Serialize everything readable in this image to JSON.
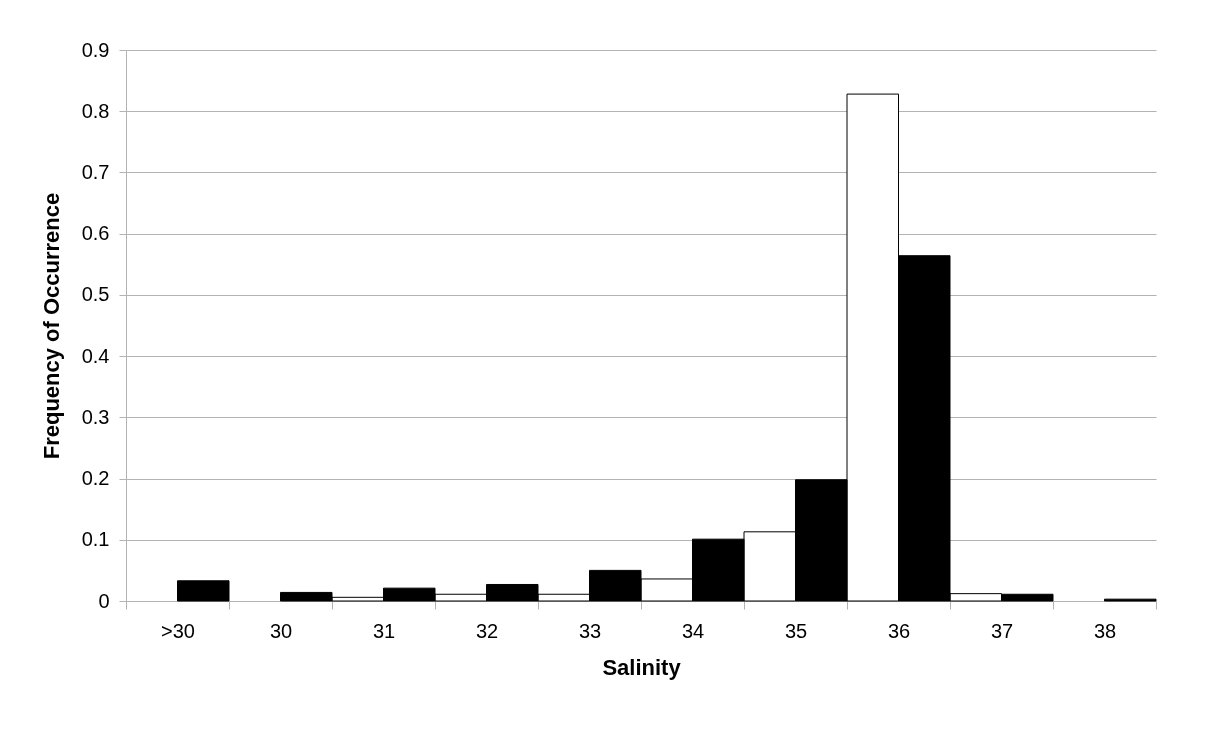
{
  "chart_data": {
    "type": "bar",
    "xlabel": "Salinity",
    "ylabel": "Frequency of Occurrence",
    "categories": [
      ">30",
      "30",
      "31",
      "32",
      "33",
      "34",
      "35",
      "36",
      "37",
      "38"
    ],
    "series": [
      {
        "color": "#ffffff",
        "values": [
          0,
          0,
          0.006,
          0.011,
          0.011,
          0.036,
          0.113,
          0.828,
          0.012,
          0
        ]
      },
      {
        "color": "#000000",
        "values": [
          0.033,
          0.014,
          0.021,
          0.027,
          0.05,
          0.101,
          0.198,
          0.564,
          0.011,
          0.003
        ]
      }
    ],
    "ylim": [
      0,
      0.9
    ],
    "yticks": [
      0,
      0.1,
      0.2,
      0.3,
      0.4,
      0.5,
      0.6,
      0.7,
      0.8,
      0.9
    ],
    "grid": "y",
    "legend": false
  }
}
